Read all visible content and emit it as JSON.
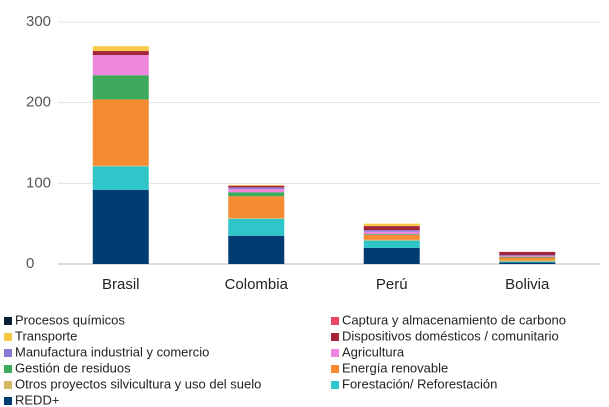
{
  "chart_data": {
    "type": "stacked-bar",
    "categories": [
      "Brasil",
      "Colombia",
      "Perú",
      "Bolivia"
    ],
    "ylim": [
      0,
      300
    ],
    "yticks": [
      0,
      100,
      200,
      300
    ],
    "grid": true,
    "series": [
      {
        "name": "Procesos químicos",
        "color": "#0b1f3a",
        "values": [
          0,
          0,
          0,
          0
        ]
      },
      {
        "name": "Captura y almacenamiento de carbono",
        "color": "#e8475f",
        "values": [
          0,
          0,
          0,
          0
        ]
      },
      {
        "name": "Transporte",
        "color": "#f7c948",
        "values": [
          6,
          1,
          3,
          0
        ]
      },
      {
        "name": "Dispositivos domésticos / comunitario",
        "color": "#a3243b",
        "values": [
          5,
          2,
          5,
          4
        ]
      },
      {
        "name": "Manufactura industrial y comercio",
        "color": "#8c7bd6",
        "values": [
          0,
          2,
          2,
          1
        ]
      },
      {
        "name": "Agricultura",
        "color": "#ef86dd",
        "values": [
          25,
          4,
          3,
          1
        ]
      },
      {
        "name": "Gestión de residuos",
        "color": "#3daa5c",
        "values": [
          30,
          5,
          1,
          1
        ]
      },
      {
        "name": "Energía renovable",
        "color": "#f68b33",
        "values": [
          82,
          27,
          6,
          3
        ]
      },
      {
        "name": "Otros proyectos silvicultura y uso del suelo",
        "color": "#d6b86a",
        "values": [
          1,
          1,
          1,
          2
        ]
      },
      {
        "name": "Forestación/ Reforestación",
        "color": "#2ec6c9",
        "values": [
          29,
          21,
          9,
          1
        ]
      },
      {
        "name": "REDD+",
        "color": "#003b73",
        "values": [
          92,
          35,
          20,
          2
        ]
      }
    ]
  }
}
